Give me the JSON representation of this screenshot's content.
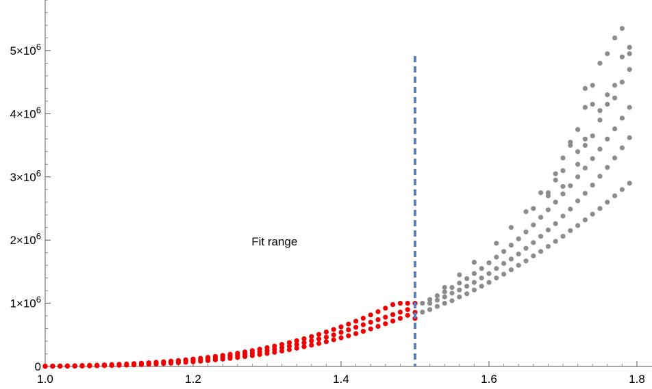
{
  "chart_data": {
    "type": "scatter",
    "title": "",
    "xlabel": "",
    "ylabel": "",
    "xlim": [
      1.0,
      1.8
    ],
    "ylim": [
      0,
      5800000
    ],
    "x_ticks": [
      1.0,
      1.2,
      1.4,
      1.6,
      1.8
    ],
    "x_tick_labels": [
      "1.0",
      "1.2",
      "1.4",
      "1.6",
      "1.8"
    ],
    "y_ticks": [
      0,
      1000000,
      2000000,
      3000000,
      4000000,
      5000000
    ],
    "y_tick_labels": [
      {
        "mantissa": "0",
        "exponent": ""
      },
      {
        "mantissa": "1×10",
        "exponent": "6"
      },
      {
        "mantissa": "2×10",
        "exponent": "6"
      },
      {
        "mantissa": "3×10",
        "exponent": "6"
      },
      {
        "mantissa": "4×10",
        "exponent": "6"
      },
      {
        "mantissa": "5×10",
        "exponent": "6"
      }
    ],
    "grid": false,
    "fit_cutoff_x": 1.5,
    "annotation": {
      "text": "Fit range",
      "x": 1.31,
      "y": 1980000
    },
    "colors": {
      "fit": "#ee0000",
      "outside": "#8c8c8c",
      "cutoff": "#5b7fb8"
    },
    "series": [
      {
        "color": "#ee0000",
        "points": [
          [
            1.0,
            5000
          ],
          [
            1.0,
            0
          ],
          [
            1.01,
            7000
          ],
          [
            1.01,
            2000
          ],
          [
            1.02,
            8000
          ],
          [
            1.02,
            3000
          ],
          [
            1.03,
            10000
          ],
          [
            1.03,
            4000
          ],
          [
            1.04,
            12000
          ],
          [
            1.04,
            5000
          ],
          [
            1.05,
            15000
          ],
          [
            1.05,
            6000
          ],
          [
            1.06,
            18000
          ],
          [
            1.06,
            8000
          ],
          [
            1.07,
            21000
          ],
          [
            1.07,
            10000
          ],
          [
            1.08,
            25000
          ],
          [
            1.08,
            12000
          ],
          [
            1.09,
            29000
          ],
          [
            1.09,
            15000
          ],
          [
            1.1,
            34000
          ],
          [
            1.1,
            18000
          ],
          [
            1.11,
            39000
          ],
          [
            1.11,
            21000
          ],
          [
            1.12,
            45000
          ],
          [
            1.12,
            25000
          ],
          [
            1.13,
            51000
          ],
          [
            1.13,
            29000
          ],
          [
            1.14,
            58000
          ],
          [
            1.14,
            34000
          ],
          [
            1.15,
            66000
          ],
          [
            1.15,
            39000
          ],
          [
            1.16,
            74000
          ],
          [
            1.16,
            45000
          ],
          [
            1.17,
            84000
          ],
          [
            1.17,
            51000
          ],
          [
            1.18,
            94000
          ],
          [
            1.18,
            58000
          ],
          [
            1.19,
            105000
          ],
          [
            1.19,
            66000
          ],
          [
            1.2,
            117000
          ],
          [
            1.2,
            74000
          ],
          [
            1.21,
            130000
          ],
          [
            1.21,
            83000
          ],
          [
            1.22,
            144000
          ],
          [
            1.22,
            93000
          ],
          [
            1.23,
            159000
          ],
          [
            1.23,
            104000
          ],
          [
            1.24,
            175000
          ],
          [
            1.24,
            115000
          ],
          [
            1.25,
            192000
          ],
          [
            1.25,
            128000
          ],
          [
            1.26,
            210000
          ],
          [
            1.26,
            141000
          ],
          [
            1.27,
            230000
          ],
          [
            1.27,
            156000
          ],
          [
            1.28,
            251000
          ],
          [
            1.28,
            171000
          ],
          [
            1.29,
            273000
          ],
          [
            1.29,
            188000
          ],
          [
            1.3,
            297000
          ],
          [
            1.3,
            205000
          ],
          [
            1.31,
            322000
          ],
          [
            1.31,
            224000
          ],
          [
            1.32,
            349000
          ],
          [
            1.32,
            244000
          ],
          [
            1.33,
            377000
          ],
          [
            1.33,
            265000
          ],
          [
            1.34,
            407000
          ],
          [
            1.34,
            288000
          ],
          [
            1.35,
            439000
          ],
          [
            1.35,
            312000
          ],
          [
            1.36,
            473000
          ],
          [
            1.36,
            337000
          ],
          [
            1.37,
            508000
          ],
          [
            1.37,
            364000
          ],
          [
            1.38,
            546000
          ],
          [
            1.38,
            392000
          ],
          [
            1.39,
            585000
          ],
          [
            1.39,
            422000
          ],
          [
            1.4,
            627000
          ],
          [
            1.4,
            453000
          ],
          [
            1.41,
            670000
          ],
          [
            1.41,
            486000
          ],
          [
            1.42,
            716000
          ],
          [
            1.42,
            520000
          ],
          [
            1.43,
            764000
          ],
          [
            1.43,
            556000
          ],
          [
            1.44,
            815000
          ],
          [
            1.44,
            594000
          ],
          [
            1.45,
            867000
          ],
          [
            1.45,
            634000
          ],
          [
            1.46,
            922000
          ],
          [
            1.46,
            675000
          ],
          [
            1.47,
            979000
          ],
          [
            1.47,
            718000
          ],
          [
            1.48,
            1000000
          ],
          [
            1.48,
            762000
          ],
          [
            1.49,
            1000000
          ],
          [
            1.49,
            808000
          ],
          [
            1.5,
            1000000
          ],
          [
            1.5,
            856000
          ],
          [
            1.5,
            760000
          ],
          [
            1.49,
            900000
          ],
          [
            1.48,
            860000
          ],
          [
            1.47,
            820000
          ],
          [
            1.46,
            780000
          ],
          [
            1.45,
            740000
          ],
          [
            1.44,
            700000
          ],
          [
            1.43,
            660000
          ],
          [
            1.42,
            620000
          ],
          [
            1.41,
            580000
          ],
          [
            1.4,
            540000
          ],
          [
            1.39,
            500000
          ],
          [
            1.38,
            465000
          ],
          [
            1.37,
            435000
          ],
          [
            1.36,
            405000
          ],
          [
            1.35,
            375000
          ],
          [
            1.34,
            348000
          ],
          [
            1.33,
            322000
          ],
          [
            1.32,
            297000
          ],
          [
            1.31,
            272000
          ],
          [
            1.3,
            250000
          ],
          [
            1.29,
            230000
          ],
          [
            1.28,
            211000
          ],
          [
            1.27,
            193000
          ],
          [
            1.26,
            176000
          ],
          [
            1.25,
            160000
          ],
          [
            1.24,
            145000
          ],
          [
            1.23,
            131000
          ],
          [
            1.22,
            118000
          ],
          [
            1.21,
            107000
          ],
          [
            1.2,
            96000
          ],
          [
            1.19,
            86000
          ],
          [
            1.18,
            76000
          ],
          [
            1.17,
            68000
          ],
          [
            1.16,
            60000
          ],
          [
            1.15,
            53000
          ],
          [
            1.14,
            46000
          ],
          [
            1.13,
            40000
          ],
          [
            1.12,
            35000
          ],
          [
            1.11,
            30000
          ],
          [
            1.1,
            26000
          ],
          [
            1.09,
            22000
          ],
          [
            1.08,
            18000
          ],
          [
            1.07,
            15000
          ],
          [
            1.06,
            13000
          ],
          [
            1.05,
            10000
          ],
          [
            1.04,
            8000
          ],
          [
            1.03,
            7000
          ],
          [
            1.02,
            5000
          ],
          [
            1.01,
            4000
          ],
          [
            1.0,
            3000
          ]
        ]
      },
      {
        "color": "#8c8c8c",
        "points": [
          [
            1.51,
            860000
          ],
          [
            1.51,
            1000000
          ],
          [
            1.52,
            900000
          ],
          [
            1.52,
            1060000
          ],
          [
            1.53,
            950000
          ],
          [
            1.53,
            1120000
          ],
          [
            1.54,
            1000000
          ],
          [
            1.54,
            1180000
          ],
          [
            1.55,
            1040000
          ],
          [
            1.55,
            1250000
          ],
          [
            1.56,
            1100000
          ],
          [
            1.56,
            1320000
          ],
          [
            1.57,
            1150000
          ],
          [
            1.57,
            1390000
          ],
          [
            1.58,
            1210000
          ],
          [
            1.58,
            1470000
          ],
          [
            1.59,
            1270000
          ],
          [
            1.59,
            1550000
          ],
          [
            1.6,
            1330000
          ],
          [
            1.6,
            1640000
          ],
          [
            1.61,
            1400000
          ],
          [
            1.61,
            1730000
          ],
          [
            1.62,
            1460000
          ],
          [
            1.62,
            1820000
          ],
          [
            1.63,
            1530000
          ],
          [
            1.63,
            1920000
          ],
          [
            1.64,
            1600000
          ],
          [
            1.64,
            2020000
          ],
          [
            1.65,
            1670000
          ],
          [
            1.65,
            2130000
          ],
          [
            1.66,
            1750000
          ],
          [
            1.66,
            2240000
          ],
          [
            1.67,
            1820000
          ],
          [
            1.67,
            2360000
          ],
          [
            1.68,
            1900000
          ],
          [
            1.68,
            2480000
          ],
          [
            1.69,
            1980000
          ],
          [
            1.69,
            2600000
          ],
          [
            1.7,
            2060000
          ],
          [
            1.7,
            2730000
          ],
          [
            1.71,
            2150000
          ],
          [
            1.71,
            2860000
          ],
          [
            1.72,
            2230000
          ],
          [
            1.72,
            3000000
          ],
          [
            1.73,
            2320000
          ],
          [
            1.73,
            3140000
          ],
          [
            1.74,
            2410000
          ],
          [
            1.74,
            3290000
          ],
          [
            1.75,
            2500000
          ],
          [
            1.75,
            3440000
          ],
          [
            1.76,
            2600000
          ],
          [
            1.76,
            3600000
          ],
          [
            1.77,
            2700000
          ],
          [
            1.77,
            3760000
          ],
          [
            1.78,
            2800000
          ],
          [
            1.78,
            3930000
          ],
          [
            1.79,
            2900000
          ],
          [
            1.79,
            4100000
          ],
          [
            1.52,
            1000000
          ],
          [
            1.53,
            1050000
          ],
          [
            1.54,
            1100000
          ],
          [
            1.55,
            1160000
          ],
          [
            1.56,
            1210000
          ],
          [
            1.57,
            1270000
          ],
          [
            1.58,
            1330000
          ],
          [
            1.59,
            1400000
          ],
          [
            1.6,
            1470000
          ],
          [
            1.61,
            1550000
          ],
          [
            1.62,
            1630000
          ],
          [
            1.63,
            1700000
          ],
          [
            1.64,
            1780000
          ],
          [
            1.65,
            1870000
          ],
          [
            1.66,
            1960000
          ],
          [
            1.67,
            2060000
          ],
          [
            1.68,
            2160000
          ],
          [
            1.69,
            2260000
          ],
          [
            1.7,
            2380000
          ],
          [
            1.71,
            2490000
          ],
          [
            1.72,
            2620000
          ],
          [
            1.73,
            2740000
          ],
          [
            1.74,
            2870000
          ],
          [
            1.75,
            3010000
          ],
          [
            1.76,
            3150000
          ],
          [
            1.77,
            3300000
          ],
          [
            1.78,
            3460000
          ],
          [
            1.79,
            3620000
          ],
          [
            1.66,
            2500000
          ],
          [
            1.68,
            2750000
          ],
          [
            1.7,
            3100000
          ],
          [
            1.72,
            3400000
          ],
          [
            1.73,
            3600000
          ],
          [
            1.74,
            3650000
          ],
          [
            1.75,
            3900000
          ],
          [
            1.76,
            4150000
          ],
          [
            1.77,
            4250000
          ],
          [
            1.78,
            4500000
          ],
          [
            1.79,
            4700000
          ],
          [
            1.79,
            4950000
          ],
          [
            1.79,
            5050000
          ],
          [
            1.78,
            5350000
          ],
          [
            1.77,
            5200000
          ],
          [
            1.76,
            4950000
          ],
          [
            1.75,
            4800000
          ],
          [
            1.74,
            4450000
          ],
          [
            1.73,
            4100000
          ],
          [
            1.72,
            3750000
          ],
          [
            1.71,
            3500000
          ],
          [
            1.7,
            3300000
          ],
          [
            1.69,
            3050000
          ],
          [
            1.67,
            2750000
          ],
          [
            1.65,
            2450000
          ],
          [
            1.63,
            2200000
          ],
          [
            1.61,
            1950000
          ],
          [
            1.58,
            1650000
          ],
          [
            1.56,
            1450000
          ],
          [
            1.54,
            1250000
          ],
          [
            1.73,
            4400000
          ],
          [
            1.74,
            4150000
          ],
          [
            1.75,
            4050000
          ],
          [
            1.76,
            4300000
          ],
          [
            1.77,
            4450000
          ],
          [
            1.78,
            4900000
          ],
          [
            1.7,
            2850000
          ],
          [
            1.69,
            2950000
          ],
          [
            1.68,
            2700000
          ],
          [
            1.72,
            3200000
          ],
          [
            1.71,
            3550000
          ],
          [
            1.73,
            3500000
          ]
        ]
      }
    ]
  }
}
